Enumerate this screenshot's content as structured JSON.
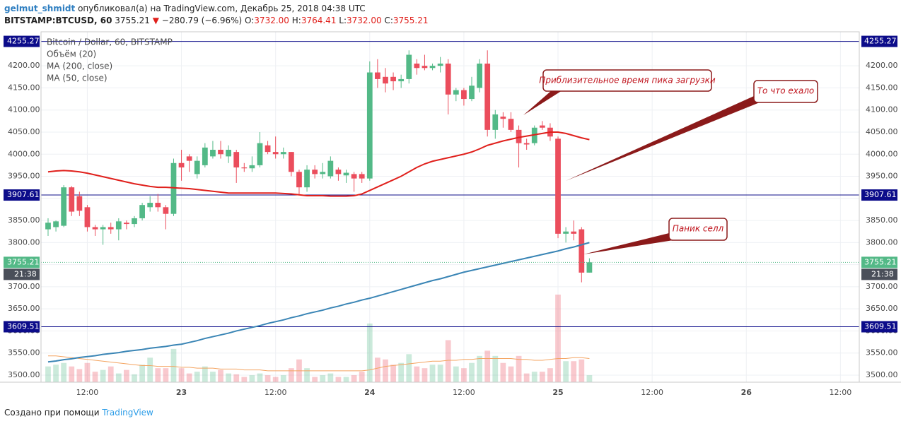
{
  "header": {
    "author": "gelmut_shmidt",
    "published": "опубликовал(а) на TradingView.com, Декабрь 25, 2018 04:38 UTC",
    "symbol": "BITSTAMP:BTCUSD, 60",
    "last": "3755.21",
    "arrow": "▼",
    "change": "−280.79 (−6.96%)",
    "ohlc": [
      {
        "label": "O:",
        "value": "3732.00"
      },
      {
        "label": "H:",
        "value": "3764.41"
      },
      {
        "label": "L:",
        "value": "3732.00"
      },
      {
        "label": "C:",
        "value": "3755.21"
      }
    ]
  },
  "chart_data": {
    "type": "candlestick",
    "title": "Bitcoin / Dollar, 60, BITSTAMP",
    "volume_name": "Объём (20)",
    "up_color": "#53b987",
    "down_color": "#eb4d5c",
    "x": [
      7,
      8,
      9,
      10,
      11,
      12,
      13,
      14,
      15,
      16,
      17,
      18,
      19,
      20,
      21,
      22,
      23,
      24,
      25,
      26,
      27,
      28,
      29,
      30,
      31,
      32,
      33,
      34,
      35,
      36,
      37,
      38,
      39,
      40,
      41,
      42,
      43,
      44,
      45,
      46,
      47,
      48,
      49,
      50,
      51,
      52,
      53,
      54,
      55,
      56,
      57,
      58,
      59,
      60,
      61,
      62,
      63,
      64,
      65,
      66,
      67,
      68,
      69,
      70,
      71,
      72,
      73,
      74,
      75,
      76
    ],
    "open": [
      3830,
      3835,
      3838,
      3925,
      3905,
      3880,
      3835,
      3830,
      3835,
      3830,
      3845,
      3842,
      3855,
      3880,
      3890,
      3880,
      3865,
      3980,
      3995,
      3955,
      3975,
      3995,
      4010,
      3995,
      4005,
      3970,
      3968,
      3975,
      4020,
      4005,
      4000,
      4005,
      3960,
      3925,
      3965,
      3955,
      3950,
      3965,
      3952,
      3955,
      3955,
      3945,
      4185,
      4175,
      4175,
      4165,
      4170,
      4205,
      4200,
      4195,
      4200,
      4205,
      4135,
      4145,
      4125,
      4150,
      4205,
      4055,
      4085,
      4080,
      4055,
      4025,
      4025,
      4065,
      4060,
      4035,
      3820,
      3825,
      3830,
      3732
    ],
    "high": [
      3855,
      3850,
      3930,
      3928,
      3915,
      3885,
      3840,
      3840,
      3845,
      3855,
      3850,
      3860,
      3890,
      3905,
      3910,
      3885,
      3990,
      4010,
      4000,
      3995,
      4025,
      4030,
      4030,
      4020,
      4010,
      3980,
      3995,
      4050,
      4030,
      4040,
      4015,
      4005,
      3965,
      3975,
      3975,
      3980,
      3995,
      3970,
      3965,
      3960,
      3960,
      4210,
      4215,
      4195,
      4185,
      4180,
      4235,
      4215,
      4225,
      4205,
      4220,
      4215,
      4150,
      4150,
      4175,
      4215,
      4235,
      4100,
      4095,
      4095,
      4065,
      4035,
      4065,
      4075,
      4070,
      4040,
      3835,
      3850,
      3835,
      3764.41
    ],
    "low": [
      3815,
      3825,
      3835,
      3860,
      3860,
      3825,
      3815,
      3795,
      3820,
      3805,
      3830,
      3835,
      3850,
      3870,
      3870,
      3830,
      3860,
      3940,
      3960,
      3945,
      3970,
      3990,
      3990,
      3980,
      3935,
      3960,
      3960,
      3970,
      4000,
      3990,
      3990,
      3950,
      3910,
      3915,
      3945,
      3945,
      3945,
      3940,
      3935,
      3915,
      3935,
      3940,
      4150,
      4140,
      4145,
      4150,
      4160,
      4180,
      4190,
      4190,
      4185,
      4090,
      4120,
      4110,
      4120,
      4140,
      4040,
      4035,
      4060,
      4050,
      3970,
      4010,
      4020,
      4055,
      4030,
      3810,
      3800,
      3805,
      3710,
      3732
    ],
    "close": [
      3845,
      3848,
      3925,
      3870,
      3872,
      3835,
      3830,
      3835,
      3830,
      3848,
      3842,
      3855,
      3885,
      3890,
      3880,
      3865,
      3980,
      3970,
      3985,
      3985,
      4015,
      4010,
      4000,
      4010,
      3970,
      3968,
      3975,
      4025,
      4005,
      4000,
      4005,
      3960,
      3925,
      3965,
      3955,
      3960,
      3985,
      3955,
      3958,
      3945,
      3945,
      4185,
      4170,
      4160,
      4165,
      4170,
      4225,
      4195,
      4195,
      4200,
      4205,
      4135,
      4145,
      4125,
      4155,
      4205,
      4055,
      4090,
      4080,
      4055,
      4025,
      4022,
      4060,
      4060,
      4040,
      3820,
      3825,
      3820,
      3732,
      3755.21
    ],
    "volume": [
      18,
      20,
      22,
      18,
      15,
      22,
      12,
      14,
      18,
      10,
      14,
      9,
      20,
      28,
      16,
      16,
      38,
      16,
      10,
      12,
      18,
      12,
      14,
      10,
      9,
      6,
      8,
      10,
      8,
      6,
      8,
      16,
      26,
      16,
      6,
      8,
      10,
      6,
      6,
      8,
      12,
      67,
      28,
      26,
      20,
      22,
      32,
      18,
      16,
      20,
      20,
      48,
      18,
      16,
      22,
      30,
      36,
      30,
      22,
      18,
      30,
      10,
      12,
      12,
      16,
      100,
      24,
      24,
      26,
      8
    ],
    "volume_ma": {
      "color": "#f4a460",
      "values": [
        30,
        30,
        29,
        28,
        27,
        26,
        25,
        24,
        23,
        22,
        21,
        20,
        19,
        19,
        18,
        18,
        18,
        17,
        17,
        16,
        16,
        16,
        15,
        15,
        15,
        14,
        14,
        14,
        13,
        13,
        13,
        13,
        13,
        13,
        13,
        13,
        13,
        13,
        13,
        13,
        13,
        14,
        16,
        18,
        19,
        20,
        21,
        22,
        23,
        24,
        24,
        25,
        25,
        26,
        26,
        27,
        27,
        27,
        27,
        27,
        26,
        26,
        25,
        25,
        26,
        27,
        27,
        28,
        28,
        27
      ]
    },
    "series": [
      {
        "name": "MA (200, close)",
        "color": "#3a85b5",
        "values": [
          3530,
          3532,
          3535,
          3537,
          3540,
          3542,
          3544,
          3547,
          3549,
          3551,
          3554,
          3556,
          3558,
          3561,
          3563,
          3565,
          3568,
          3570,
          3574,
          3578,
          3583,
          3587,
          3591,
          3595,
          3600,
          3604,
          3608,
          3612,
          3617,
          3621,
          3625,
          3630,
          3634,
          3639,
          3643,
          3647,
          3652,
          3656,
          3661,
          3665,
          3670,
          3674,
          3679,
          3684,
          3689,
          3694,
          3699,
          3704,
          3709,
          3714,
          3718,
          3723,
          3728,
          3733,
          3737,
          3741,
          3745,
          3749,
          3753,
          3757,
          3761,
          3765,
          3769,
          3773,
          3777,
          3781,
          3786,
          3790,
          3795,
          3800
        ]
      },
      {
        "name": "MA (50, close)",
        "color": "#e0201c",
        "values": [
          3960,
          3962,
          3963,
          3962,
          3960,
          3957,
          3953,
          3949,
          3945,
          3941,
          3937,
          3933,
          3930,
          3927,
          3925,
          3925,
          3924,
          3923,
          3922,
          3920,
          3918,
          3916,
          3914,
          3912,
          3912,
          3912,
          3912,
          3912,
          3912,
          3912,
          3911,
          3910,
          3908,
          3906,
          3906,
          3906,
          3905,
          3905,
          3905,
          3906,
          3910,
          3918,
          3926,
          3934,
          3942,
          3950,
          3960,
          3970,
          3978,
          3984,
          3988,
          3992,
          3996,
          4000,
          4005,
          4012,
          4020,
          4025,
          4030,
          4034,
          4038,
          4041,
          4044,
          4047,
          4050,
          4050,
          4047,
          4042,
          4037,
          4033
        ]
      }
    ],
    "xlim": [
      6.1,
      110.4
    ],
    "xticks": [
      {
        "value": 12,
        "label": "12:00"
      },
      {
        "value": 24,
        "label": "23"
      },
      {
        "value": 36,
        "label": "12:00"
      },
      {
        "value": 48,
        "label": "24"
      },
      {
        "value": 60,
        "label": "12:00"
      },
      {
        "value": 72,
        "label": "25"
      },
      {
        "value": 84,
        "label": "12:00"
      },
      {
        "value": 96,
        "label": "26"
      },
      {
        "value": 108,
        "label": "12:00"
      }
    ],
    "ylim": [
      3484,
      4277
    ],
    "yticks": [
      {
        "value": 3500,
        "label": "3500.00"
      },
      {
        "value": 3550,
        "label": "3550.00"
      },
      {
        "value": 3600,
        "label": "3600.00"
      },
      {
        "value": 3650,
        "label": "3650.00"
      },
      {
        "value": 3700,
        "label": "3700.00"
      },
      {
        "value": 3750,
        "label": "3750.00"
      },
      {
        "value": 3800,
        "label": "3800.00"
      },
      {
        "value": 3850,
        "label": "3850.00"
      },
      {
        "value": 3900,
        "label": "3900.00"
      },
      {
        "value": 3950,
        "label": "3950.00"
      },
      {
        "value": 4000,
        "label": "4000.00"
      },
      {
        "value": 4050,
        "label": "4050.00"
      },
      {
        "value": 4100,
        "label": "4100.00"
      },
      {
        "value": 4150,
        "label": "4150.00"
      },
      {
        "value": 4200,
        "label": "4200.00"
      }
    ],
    "grid": true,
    "hlines": [
      {
        "value": 4255.27,
        "color": "#0c0c8a"
      },
      {
        "value": 3907.61,
        "color": "#0c0c8a"
      },
      {
        "value": 3609.51,
        "color": "#0c0c8a"
      }
    ],
    "price_line": {
      "value": 3755.21,
      "timer": "21:38",
      "color": "#53b987"
    },
    "annotations": [
      {
        "text": "Приблизительное время пика загрузки"
      },
      {
        "text": "То что ехало"
      },
      {
        "text": "Паник селл"
      }
    ]
  },
  "footer": {
    "text": "Создано при помощи",
    "brand": "TradingView"
  }
}
